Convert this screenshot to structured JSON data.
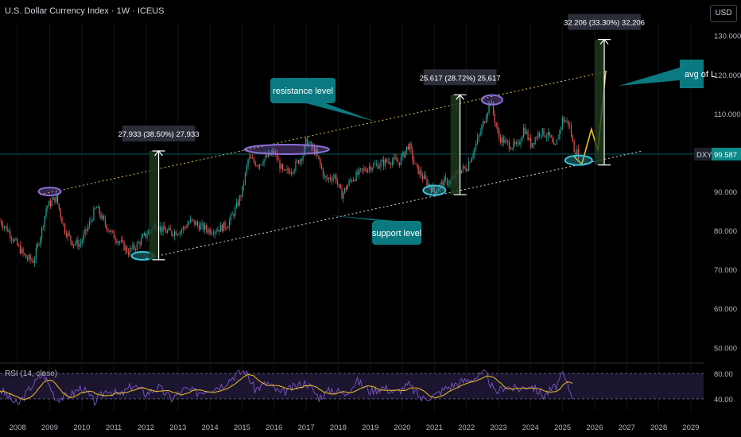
{
  "header": {
    "title": "U.S. Dollar Currency Index · 1W · ICEUS",
    "currency_button": "USD"
  },
  "rsi_panel": {
    "title": "RSI (14, close)"
  },
  "price_badge": {
    "symbol": "DXY",
    "value": "99.587"
  },
  "colors": {
    "background": "#000000",
    "bullish_candle": "#26a69a",
    "bearish_candle": "#ef5350",
    "resistance_line": "#e6c35c",
    "support_line": "#d1d4dc",
    "annotation_bubble": "#0a7a80",
    "highlight_purple": "#8e6fd6",
    "highlight_cyan": "#36c4d6",
    "projection": "#f0c020",
    "rsi_line": "#7e57c2",
    "rsi_ma": "#f0c020",
    "price_badge": "#0d8a8a"
  },
  "annotations": {
    "resistance": "resistance level",
    "support": "support level",
    "avg": "avg of L"
  },
  "measures": [
    {
      "label": "27.933 (38.50%) 27,933",
      "x_from": 2012.4,
      "low": 72.5,
      "high": 100.4
    },
    {
      "label": "25.617 (28.72%) 25,617",
      "x_from": 2021.8,
      "low": 89.2,
      "high": 114.8
    },
    {
      "label": "32.206 (33.30%) 32,206",
      "x_from": 2026.3,
      "low": 96.8,
      "high": 129.0
    }
  ],
  "chart_data": {
    "type": "line",
    "title": "U.S. Dollar Currency Index · 1W · ICEUS",
    "x_ticks": [
      "2008",
      "2009",
      "2010",
      "2011",
      "2012",
      "2013",
      "2014",
      "2015",
      "2016",
      "2017",
      "2018",
      "2019",
      "2020",
      "2021",
      "2022",
      "2023",
      "2024",
      "2025",
      "2026",
      "2027",
      "2028",
      "2029"
    ],
    "price_axis": {
      "ticks": [
        "130.000",
        "120.000",
        "110.000",
        "100.000",
        "90.000",
        "80.000",
        "70.000",
        "60.000",
        "50.000"
      ],
      "ylim": [
        47,
        133
      ]
    },
    "rsi_axis": {
      "ticks": [
        "80.00",
        "40.00"
      ],
      "ylim": [
        20,
        90
      ]
    },
    "xlim": [
      2007.45,
      2029.4
    ],
    "price_series": {
      "name": "DXY",
      "x": [
        2007.45,
        2007.7,
        2008.0,
        2008.25,
        2008.5,
        2008.75,
        2008.9,
        2009.2,
        2009.45,
        2009.7,
        2009.95,
        2010.2,
        2010.45,
        2010.7,
        2010.95,
        2011.2,
        2011.45,
        2011.7,
        2011.95,
        2012.3,
        2012.55,
        2012.8,
        2013.1,
        2013.4,
        2013.7,
        2014.0,
        2014.3,
        2014.55,
        2014.8,
        2015.0,
        2015.2,
        2015.5,
        2015.8,
        2016.0,
        2016.3,
        2016.6,
        2016.9,
        2017.0,
        2017.3,
        2017.6,
        2017.9,
        2018.1,
        2018.4,
        2018.7,
        2019.0,
        2019.3,
        2019.6,
        2019.9,
        2020.2,
        2020.4,
        2020.7,
        2021.0,
        2021.3,
        2021.5,
        2021.8,
        2022.0,
        2022.3,
        2022.55,
        2022.75,
        2023.0,
        2023.3,
        2023.6,
        2023.8,
        2024.0,
        2024.3,
        2024.6,
        2024.75,
        2025.0,
        2025.2,
        2025.35,
        2025.5
      ],
      "values": [
        82.5,
        80.0,
        76.0,
        73.0,
        72.2,
        80.0,
        86.0,
        88.5,
        80.5,
        77.0,
        76.5,
        81.0,
        86.0,
        82.0,
        79.0,
        77.0,
        74.5,
        76.0,
        78.5,
        81.5,
        80.0,
        79.5,
        80.0,
        82.5,
        81.0,
        80.0,
        80.5,
        81.5,
        85.5,
        90.0,
        98.5,
        97.0,
        99.0,
        100.0,
        94.5,
        96.0,
        99.5,
        103.0,
        100.0,
        93.0,
        94.0,
        89.0,
        93.0,
        95.0,
        96.5,
        97.0,
        98.0,
        97.5,
        102.0,
        96.5,
        93.0,
        90.0,
        92.5,
        92.5,
        95.5,
        96.0,
        102.0,
        108.0,
        113.5,
        104.0,
        102.0,
        101.5,
        106.5,
        102.0,
        105.5,
        104.0,
        100.5,
        108.5,
        107.5,
        101.0,
        99.6
      ]
    },
    "projection": {
      "name": "projection",
      "x": [
        2025.35,
        2025.6,
        2025.9,
        2026.1,
        2026.35
      ],
      "values": [
        99.0,
        97.0,
        106.0,
        100.5,
        121.0
      ]
    },
    "resistance_line": {
      "x": [
        2008.7,
        2026.4
      ],
      "values": [
        89.2,
        120.8
      ]
    },
    "support_line": {
      "x": [
        2012.0,
        2027.5
      ],
      "values": [
        72.8,
        100.4
      ]
    },
    "rsi_series": {
      "name": "RSI",
      "x": [
        2007.45,
        2008.0,
        2008.4,
        2008.8,
        2009.2,
        2009.6,
        2010.0,
        2010.4,
        2010.8,
        2011.2,
        2011.6,
        2012.0,
        2012.4,
        2012.8,
        2013.2,
        2013.6,
        2014.0,
        2014.4,
        2014.8,
        2015.1,
        2015.4,
        2015.8,
        2016.2,
        2016.6,
        2017.0,
        2017.4,
        2017.8,
        2018.2,
        2018.6,
        2019.0,
        2019.4,
        2019.8,
        2020.2,
        2020.6,
        2021.0,
        2021.4,
        2021.8,
        2022.2,
        2022.6,
        2022.9,
        2023.2,
        2023.6,
        2024.0,
        2024.4,
        2024.8,
        2025.0,
        2025.3
      ],
      "values": [
        55,
        30,
        58,
        80,
        40,
        45,
        58,
        35,
        55,
        45,
        62,
        48,
        58,
        40,
        55,
        50,
        56,
        62,
        78,
        84,
        55,
        65,
        48,
        58,
        66,
        42,
        55,
        48,
        68,
        52,
        58,
        50,
        62,
        40,
        45,
        58,
        66,
        72,
        80,
        48,
        60,
        55,
        62,
        45,
        60,
        78,
        45
      ]
    }
  }
}
